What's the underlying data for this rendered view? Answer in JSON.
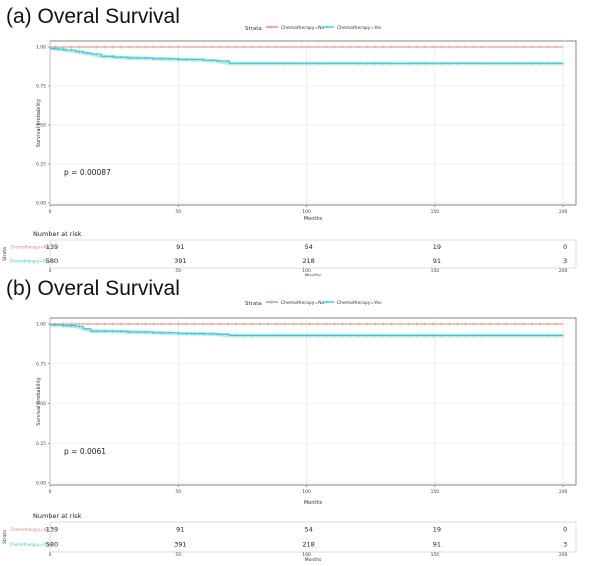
{
  "chart_data": [
    {
      "type": "line",
      "title": "(a) Overal Survival",
      "legend_title": "Strata",
      "legend_position": "top",
      "xlabel": "Months",
      "ylabel": "Survival probability",
      "xlim": [
        0,
        205
      ],
      "ylim": [
        0,
        1
      ],
      "x_ticks": [
        0,
        50,
        100,
        150,
        200
      ],
      "y_ticks": [
        "0.00",
        "0.25",
        "0.50",
        "0.75",
        "1.00"
      ],
      "grid": true,
      "pvalue": "p = 0.00087",
      "series": [
        {
          "name": "Chemotherapy=No",
          "color": "#E8837C",
          "x": [
            0,
            200
          ],
          "y": [
            1.0,
            1.0
          ]
        },
        {
          "name": "Chemotherapy=Yes",
          "color": "#3DC6CC",
          "x": [
            0,
            3,
            6,
            10,
            13,
            16,
            20,
            25,
            30,
            40,
            50,
            60,
            65,
            70,
            80,
            100,
            150,
            200
          ],
          "y": [
            0.99,
            0.985,
            0.98,
            0.97,
            0.962,
            0.955,
            0.94,
            0.935,
            0.93,
            0.925,
            0.92,
            0.915,
            0.91,
            0.895,
            0.895,
            0.895,
            0.895,
            0.895
          ]
        }
      ],
      "risk_table": {
        "title": "Number at risk",
        "ylabel": "Strata",
        "xlabel": "Months",
        "x": [
          0,
          50,
          100,
          150,
          200
        ],
        "x_tick_labels": [
          "0",
          "50",
          "100",
          "150",
          "200"
        ],
        "rows": [
          {
            "label": "Chemotherapy=No",
            "color": "#E8837C",
            "values": [
              "139",
              "91",
              "54",
              "19",
              "0"
            ]
          },
          {
            "label": "Chemotherapy=Yes",
            "color": "#3DC6CC",
            "values": [
              "580",
              "391",
              "218",
              "91",
              "3"
            ]
          }
        ]
      }
    },
    {
      "type": "line",
      "title": "(b) Overal Survival",
      "legend_title": "Strata",
      "legend_position": "top",
      "xlabel": "Months",
      "ylabel": "Survival probability",
      "xlim": [
        0,
        205
      ],
      "ylim": [
        0,
        1
      ],
      "x_ticks": [
        0,
        50,
        100,
        150,
        200
      ],
      "y_ticks": [
        "0.00",
        "0.25",
        "0.50",
        "0.75",
        "1.00"
      ],
      "grid": true,
      "pvalue": "p = 0.0061",
      "series": [
        {
          "name": "Chemotherapy=No",
          "color": "#E8837C",
          "x": [
            0,
            200
          ],
          "y": [
            1.0,
            1.0
          ]
        },
        {
          "name": "Chemotherapy=Yes",
          "color": "#3DC6CC",
          "x": [
            0,
            5,
            10,
            13,
            16,
            20,
            30,
            40,
            50,
            60,
            65,
            70,
            80,
            100,
            150,
            200
          ],
          "y": [
            0.995,
            0.99,
            0.985,
            0.97,
            0.955,
            0.955,
            0.95,
            0.945,
            0.94,
            0.938,
            0.935,
            0.928,
            0.928,
            0.928,
            0.928,
            0.928
          ]
        }
      ],
      "risk_table": {
        "title": "Number at risk",
        "ylabel": "Strata",
        "xlabel": "Months",
        "x": [
          0,
          50,
          100,
          150,
          200
        ],
        "x_tick_labels": [
          "0",
          "50",
          "100",
          "150",
          "200"
        ],
        "rows": [
          {
            "label": "Chemotherapy=No",
            "color": "#E8837C",
            "values": [
              "139",
              "91",
              "54",
              "19",
              "0"
            ]
          },
          {
            "label": "Chemotherapy=Yes",
            "color": "#3DC6CC",
            "values": [
              "580",
              "391",
              "218",
              "91",
              "3"
            ]
          }
        ]
      }
    }
  ]
}
